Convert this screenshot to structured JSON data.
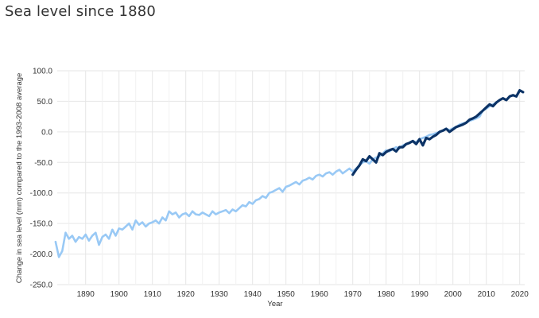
{
  "page": {
    "title": "Sea level since 1880"
  },
  "chart_data": {
    "type": "line",
    "xlabel": "Year",
    "ylabel": "Change in sea level (mm) compared to the 1993-2008 average",
    "xlim": [
      1881.5,
      2021.5
    ],
    "ylim": [
      -250,
      100
    ],
    "x_ticks": [
      1890,
      1900,
      1910,
      1920,
      1930,
      1940,
      1950,
      1960,
      1970,
      1980,
      1990,
      2000,
      2010,
      2020
    ],
    "x_tick_labels": [
      "1890",
      "1900",
      "1910",
      "1920",
      "1930",
      "1940",
      "1950",
      "1960",
      "1970",
      "1980",
      "1990",
      "2000",
      "2010",
      "2020"
    ],
    "y_ticks": [
      100,
      50,
      0,
      -50,
      -100,
      -150,
      -200,
      -250
    ],
    "y_tick_labels": [
      "100.0",
      "50.0",
      "0.0",
      "-50.0",
      "-100.0",
      "-150.0",
      "-200.0",
      "-250.0"
    ],
    "grid": true,
    "legend": "none",
    "series": [
      {
        "color": "#99c9f5",
        "x": [
          1881,
          1882,
          1883,
          1884,
          1885,
          1886,
          1887,
          1888,
          1889,
          1890,
          1891,
          1892,
          1893,
          1894,
          1895,
          1896,
          1897,
          1898,
          1899,
          1900,
          1901,
          1902,
          1903,
          1904,
          1905,
          1906,
          1907,
          1908,
          1909,
          1910,
          1911,
          1912,
          1913,
          1914,
          1915,
          1916,
          1917,
          1918,
          1919,
          1920,
          1921,
          1922,
          1923,
          1924,
          1925,
          1926,
          1927,
          1928,
          1929,
          1930,
          1931,
          1932,
          1933,
          1934,
          1935,
          1936,
          1937,
          1938,
          1939,
          1940,
          1941,
          1942,
          1943,
          1944,
          1945,
          1946,
          1947,
          1948,
          1949,
          1950,
          1951,
          1952,
          1953,
          1954,
          1955,
          1956,
          1957,
          1958,
          1959,
          1960,
          1961,
          1962,
          1963,
          1964,
          1965,
          1966,
          1967,
          1968,
          1969,
          1970,
          1971,
          1972,
          1973,
          1974,
          1975,
          1976,
          1977,
          1978,
          1979,
          1980,
          1981,
          1982,
          1983,
          1984,
          1985,
          1986,
          1987,
          1988,
          1989,
          1990,
          1991,
          1992,
          1993,
          1994,
          1995,
          1996,
          1997,
          1998,
          1999,
          2000,
          2001,
          2002,
          2003,
          2004,
          2005,
          2006,
          2007,
          2008,
          2009,
          2010,
          2011,
          2012,
          2013
        ],
        "y": [
          -180,
          -205,
          -195,
          -165,
          -175,
          -170,
          -180,
          -172,
          -175,
          -168,
          -178,
          -170,
          -165,
          -185,
          -172,
          -168,
          -175,
          -160,
          -170,
          -158,
          -160,
          -155,
          -150,
          -160,
          -145,
          -152,
          -148,
          -155,
          -150,
          -148,
          -145,
          -150,
          -140,
          -145,
          -130,
          -135,
          -132,
          -140,
          -135,
          -133,
          -138,
          -130,
          -135,
          -136,
          -132,
          -135,
          -138,
          -130,
          -135,
          -132,
          -130,
          -128,
          -133,
          -127,
          -130,
          -125,
          -120,
          -122,
          -115,
          -118,
          -112,
          -110,
          -105,
          -108,
          -100,
          -98,
          -95,
          -92,
          -98,
          -90,
          -88,
          -85,
          -82,
          -86,
          -80,
          -78,
          -75,
          -78,
          -72,
          -70,
          -73,
          -68,
          -66,
          -70,
          -65,
          -62,
          -68,
          -64,
          -60,
          -65,
          -60,
          -55,
          -50,
          -48,
          -52,
          -45,
          -42,
          -40,
          -35,
          -30,
          -32,
          -28,
          -25,
          -27,
          -22,
          -20,
          -18,
          -15,
          -17,
          -12,
          -10,
          -8,
          -5,
          -4,
          -2,
          0,
          2,
          5,
          3,
          6,
          8,
          12,
          14,
          15,
          18,
          20,
          22,
          25,
          35,
          38,
          42,
          45,
          48
        ]
      },
      {
        "color": "#0c3366",
        "x": [
          1970,
          1971,
          1972,
          1973,
          1974,
          1975,
          1976,
          1977,
          1978,
          1979,
          1980,
          1981,
          1982,
          1983,
          1984,
          1985,
          1986,
          1987,
          1988,
          1989,
          1990,
          1991,
          1992,
          1993,
          1994,
          1995,
          1996,
          1997,
          1998,
          1999,
          2000,
          2001,
          2002,
          2003,
          2004,
          2005,
          2006,
          2007,
          2008,
          2009,
          2010,
          2011,
          2012,
          2013,
          2014,
          2015,
          2016,
          2017,
          2018,
          2019,
          2020,
          2021
        ],
        "y": [
          -70,
          -62,
          -55,
          -45,
          -48,
          -40,
          -45,
          -50,
          -35,
          -38,
          -33,
          -30,
          -28,
          -32,
          -25,
          -25,
          -20,
          -18,
          -15,
          -20,
          -12,
          -22,
          -10,
          -12,
          -8,
          -5,
          0,
          2,
          5,
          0,
          4,
          8,
          10,
          12,
          15,
          20,
          22,
          25,
          30,
          35,
          40,
          45,
          42,
          48,
          52,
          55,
          52,
          58,
          60,
          58,
          68,
          65
        ]
      }
    ]
  }
}
